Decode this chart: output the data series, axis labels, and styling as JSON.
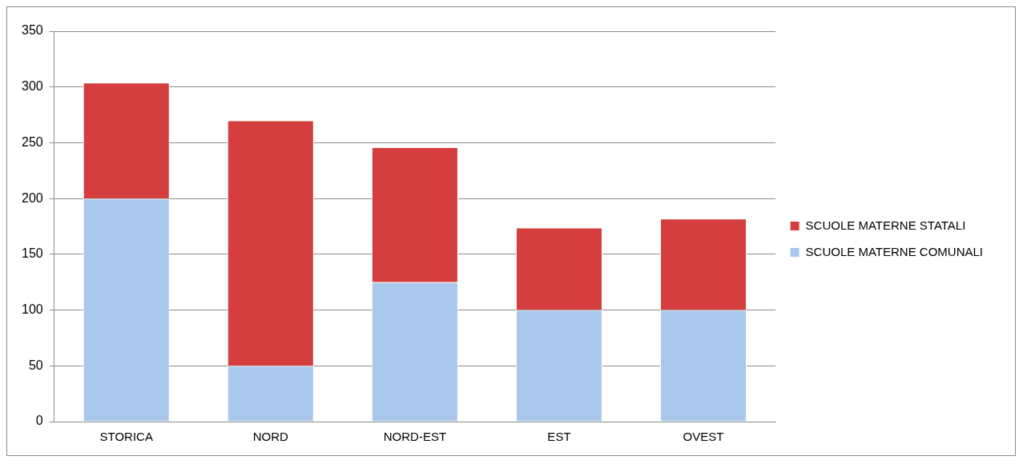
{
  "chart_data": {
    "type": "bar",
    "stacked": true,
    "categories": [
      "STORICA",
      "NORD",
      "NORD-EST",
      "EST",
      "OVEST"
    ],
    "series": [
      {
        "name": "SCUOLE MATERNE COMUNALI",
        "color": "#a9c8ec",
        "values": [
          200,
          50,
          125,
          100,
          100
        ]
      },
      {
        "name": "SCUOLE MATERNE STATALI",
        "color": "#d53e3e",
        "values": [
          104,
          220,
          121,
          74,
          82
        ]
      }
    ],
    "ylim": [
      0,
      350
    ],
    "yticks": [
      0,
      50,
      100,
      150,
      200,
      250,
      300,
      350
    ],
    "grid": "y",
    "legend": "right"
  }
}
